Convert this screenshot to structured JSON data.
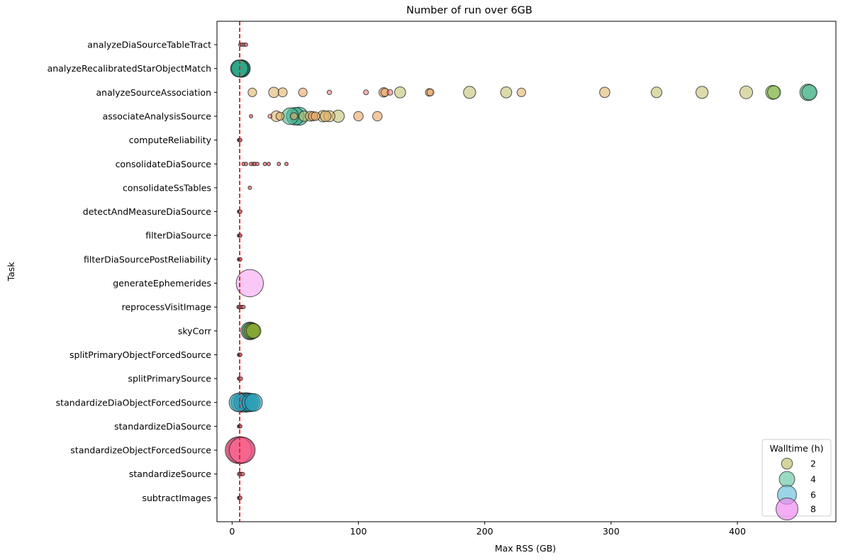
{
  "chart_data": {
    "type": "scatter",
    "title": "Number of run over 6GB",
    "xlabel": "Max RSS (GB)",
    "ylabel": "Task",
    "xlim": [
      -12,
      478
    ],
    "xticks": [
      0,
      100,
      200,
      300,
      400
    ],
    "threshold": 6,
    "threshold_color": "#e8191d",
    "categories": [
      "analyzeDiaSourceTableTract",
      "analyzeRecalibratedStarObjectMatch",
      "analyzeSourceAssociation",
      "associateAnalysisSource",
      "computeReliability",
      "consolidateDiaSource",
      "consolidateSsTables",
      "detectAndMeasureDiaSource",
      "filterDiaSource",
      "filterDiaSourcePostReliability",
      "generateEphemerides",
      "reprocessVisitImage",
      "skyCorr",
      "splitPrimaryObjectForcedSource",
      "splitPrimarySource",
      "standardizeDiaObjectForcedSource",
      "standardizeDiaSource",
      "standardizeObjectForcedSource",
      "standardizeSource",
      "subtractImages"
    ],
    "points": [
      {
        "task": 0,
        "x": 6.5,
        "w": 0.1,
        "c": "#f08080"
      },
      {
        "task": 0,
        "x": 8,
        "w": 0.1,
        "c": "#f08080"
      },
      {
        "task": 0,
        "x": 9.5,
        "w": 0.1,
        "c": "#f08080"
      },
      {
        "task": 0,
        "x": 11,
        "w": 0.1,
        "c": "#f08080"
      },
      {
        "task": 1,
        "x": 5.5,
        "w": 3.5,
        "c": "#2aa889"
      },
      {
        "task": 1,
        "x": 6,
        "w": 3.5,
        "c": "#2aa889"
      },
      {
        "task": 1,
        "x": 6.5,
        "w": 3.6,
        "c": "#2aa889"
      },
      {
        "task": 1,
        "x": 7,
        "w": 3.6,
        "c": "#2aa889"
      },
      {
        "task": 1,
        "x": 7.5,
        "w": 3.7,
        "c": "#2aa889"
      },
      {
        "task": 2,
        "x": 16,
        "w": 0.9,
        "c": "#dfb56a"
      },
      {
        "task": 2,
        "x": 33,
        "w": 1.3,
        "c": "#dfb56a"
      },
      {
        "task": 2,
        "x": 40,
        "w": 1.0,
        "c": "#dfb56a"
      },
      {
        "task": 2,
        "x": 56,
        "w": 0.9,
        "c": "#e8a565"
      },
      {
        "task": 2,
        "x": 77,
        "w": 0.25,
        "c": "#f08080"
      },
      {
        "task": 2,
        "x": 106,
        "w": 0.3,
        "c": "#f08080"
      },
      {
        "task": 2,
        "x": 120,
        "w": 1.1,
        "c": "#e8a565"
      },
      {
        "task": 2,
        "x": 121,
        "w": 0.8,
        "c": "#e8a565"
      },
      {
        "task": 2,
        "x": 125,
        "w": 0.4,
        "c": "#f08080"
      },
      {
        "task": 2,
        "x": 133,
        "w": 1.5,
        "c": "#c3c272"
      },
      {
        "task": 2,
        "x": 156,
        "w": 0.7,
        "c": "#e8a565"
      },
      {
        "task": 2,
        "x": 157,
        "w": 0.6,
        "c": "#e8a565"
      },
      {
        "task": 2,
        "x": 188,
        "w": 1.8,
        "c": "#c3c272"
      },
      {
        "task": 2,
        "x": 217,
        "w": 1.5,
        "c": "#c3c272"
      },
      {
        "task": 2,
        "x": 229,
        "w": 0.9,
        "c": "#dfb56a"
      },
      {
        "task": 2,
        "x": 295,
        "w": 1.3,
        "c": "#dfb56a"
      },
      {
        "task": 2,
        "x": 336,
        "w": 1.4,
        "c": "#c3c272"
      },
      {
        "task": 2,
        "x": 372,
        "w": 1.8,
        "c": "#c3c272"
      },
      {
        "task": 2,
        "x": 407,
        "w": 2.0,
        "c": "#c3c272"
      },
      {
        "task": 2,
        "x": 428,
        "w": 2.4,
        "c": "#8bbd55"
      },
      {
        "task": 2,
        "x": 429,
        "w": 2.1,
        "c": "#8bbd55"
      },
      {
        "task": 2,
        "x": 456,
        "w": 3.3,
        "c": "#4fb68c"
      },
      {
        "task": 2,
        "x": 457,
        "w": 2.8,
        "c": "#4fb68c"
      },
      {
        "task": 3,
        "x": 15,
        "w": 0.1,
        "c": "#f08080"
      },
      {
        "task": 3,
        "x": 30,
        "w": 0.2,
        "c": "#f08080"
      },
      {
        "task": 3,
        "x": 35,
        "w": 1.4,
        "c": "#dfb56a"
      },
      {
        "task": 3,
        "x": 38,
        "w": 0.8,
        "c": "#dfb56a"
      },
      {
        "task": 3,
        "x": 46,
        "w": 3.4,
        "c": "#4fb68c"
      },
      {
        "task": 3,
        "x": 49,
        "w": 0.6,
        "c": "#e8a565"
      },
      {
        "task": 3,
        "x": 50,
        "w": 3.8,
        "c": "#2aa889"
      },
      {
        "task": 3,
        "x": 53,
        "w": 4.0,
        "c": "#2aa889"
      },
      {
        "task": 3,
        "x": 57,
        "w": 1.3,
        "c": "#c3c272"
      },
      {
        "task": 3,
        "x": 62,
        "w": 1.2,
        "c": "#dfb56a"
      },
      {
        "task": 3,
        "x": 64,
        "w": 1.0,
        "c": "#e8a565"
      },
      {
        "task": 3,
        "x": 66,
        "w": 0.9,
        "c": "#e8a565"
      },
      {
        "task": 3,
        "x": 72,
        "w": 1.6,
        "c": "#c3c272"
      },
      {
        "task": 3,
        "x": 74,
        "w": 1.4,
        "c": "#dfb56a"
      },
      {
        "task": 3,
        "x": 77,
        "w": 1.5,
        "c": "#dfb56a"
      },
      {
        "task": 3,
        "x": 84,
        "w": 1.8,
        "c": "#c3c272"
      },
      {
        "task": 3,
        "x": 100,
        "w": 1.1,
        "c": "#e8a565"
      },
      {
        "task": 3,
        "x": 115,
        "w": 1.1,
        "c": "#e8a565"
      },
      {
        "task": 4,
        "x": 5.5,
        "w": 0.05,
        "c": "#f08080"
      },
      {
        "task": 4,
        "x": 6,
        "w": 0.05,
        "c": "#f08080"
      },
      {
        "task": 4,
        "x": 6.5,
        "w": 0.05,
        "c": "#f08080"
      },
      {
        "task": 5,
        "x": 9,
        "w": 0.1,
        "c": "#f08080"
      },
      {
        "task": 5,
        "x": 11,
        "w": 0.1,
        "c": "#f08080"
      },
      {
        "task": 5,
        "x": 15,
        "w": 0.1,
        "c": "#f08080"
      },
      {
        "task": 5,
        "x": 17,
        "w": 0.1,
        "c": "#f08080"
      },
      {
        "task": 5,
        "x": 18,
        "w": 0.1,
        "c": "#f08080"
      },
      {
        "task": 5,
        "x": 20,
        "w": 0.1,
        "c": "#f08080"
      },
      {
        "task": 5,
        "x": 26,
        "w": 0.1,
        "c": "#f08080"
      },
      {
        "task": 5,
        "x": 29,
        "w": 0.1,
        "c": "#f08080"
      },
      {
        "task": 5,
        "x": 37,
        "w": 0.1,
        "c": "#f08080"
      },
      {
        "task": 5,
        "x": 43,
        "w": 0.1,
        "c": "#f08080"
      },
      {
        "task": 6,
        "x": 14,
        "w": 0.1,
        "c": "#f08080"
      },
      {
        "task": 7,
        "x": 5.5,
        "w": 0.05,
        "c": "#f08080"
      },
      {
        "task": 7,
        "x": 6,
        "w": 0.05,
        "c": "#f08080"
      },
      {
        "task": 7,
        "x": 6.5,
        "w": 0.05,
        "c": "#f08080"
      },
      {
        "task": 8,
        "x": 5.5,
        "w": 0.05,
        "c": "#f08080"
      },
      {
        "task": 8,
        "x": 6,
        "w": 0.05,
        "c": "#f08080"
      },
      {
        "task": 8,
        "x": 6.5,
        "w": 0.05,
        "c": "#f08080"
      },
      {
        "task": 9,
        "x": 5.5,
        "w": 0.05,
        "c": "#f08080"
      },
      {
        "task": 9,
        "x": 6,
        "w": 0.05,
        "c": "#f08080"
      },
      {
        "task": 9,
        "x": 6.5,
        "w": 0.05,
        "c": "#f08080"
      },
      {
        "task": 10,
        "x": 14,
        "w": 9.0,
        "c": "#f7a3f2"
      },
      {
        "task": 11,
        "x": 5,
        "w": 0.05,
        "c": "#f08080"
      },
      {
        "task": 11,
        "x": 6,
        "w": 0.05,
        "c": "#f08080"
      },
      {
        "task": 11,
        "x": 7,
        "w": 0.05,
        "c": "#f08080"
      },
      {
        "task": 11,
        "x": 8,
        "w": 0.05,
        "c": "#f08080"
      },
      {
        "task": 11,
        "x": 9,
        "w": 0.05,
        "c": "#f08080"
      },
      {
        "task": 12,
        "x": 14,
        "w": 3.8,
        "c": "#2a9a7a"
      },
      {
        "task": 12,
        "x": 15,
        "w": 3.5,
        "c": "#5f9a3a"
      },
      {
        "task": 12,
        "x": 16,
        "w": 3.0,
        "c": "#8aa62c"
      },
      {
        "task": 12,
        "x": 17,
        "w": 2.6,
        "c": "#8aa62c"
      },
      {
        "task": 13,
        "x": 5.5,
        "w": 0.05,
        "c": "#f08080"
      },
      {
        "task": 13,
        "x": 6,
        "w": 0.05,
        "c": "#f08080"
      },
      {
        "task": 13,
        "x": 6.5,
        "w": 0.05,
        "c": "#f08080"
      },
      {
        "task": 14,
        "x": 5.5,
        "w": 0.05,
        "c": "#f08080"
      },
      {
        "task": 14,
        "x": 6,
        "w": 0.05,
        "c": "#f08080"
      },
      {
        "task": 14,
        "x": 7,
        "w": 0.05,
        "c": "#f08080"
      },
      {
        "task": 15,
        "x": 5,
        "w": 4.2,
        "c": "#2aa0b8"
      },
      {
        "task": 15,
        "x": 7,
        "w": 4.6,
        "c": "#2aa0b8"
      },
      {
        "task": 15,
        "x": 9,
        "w": 4.4,
        "c": "#2aa0b8"
      },
      {
        "task": 15,
        "x": 11,
        "w": 4.6,
        "c": "#2aa0b8"
      },
      {
        "task": 15,
        "x": 13,
        "w": 4.3,
        "c": "#2aa0b8"
      },
      {
        "task": 15,
        "x": 15,
        "w": 4.0,
        "c": "#2aa0b8"
      },
      {
        "task": 15,
        "x": 17,
        "w": 3.8,
        "c": "#2aa0b8"
      },
      {
        "task": 16,
        "x": 5.5,
        "w": 0.05,
        "c": "#f08080"
      },
      {
        "task": 16,
        "x": 6,
        "w": 0.05,
        "c": "#f08080"
      },
      {
        "task": 16,
        "x": 6.5,
        "w": 0.05,
        "c": "#f08080"
      },
      {
        "task": 17,
        "x": 5,
        "w": 8.5,
        "c": "#f4628d"
      },
      {
        "task": 17,
        "x": 6,
        "w": 8.8,
        "c": "#f4628d"
      },
      {
        "task": 17,
        "x": 7,
        "w": 8.6,
        "c": "#f4628d"
      },
      {
        "task": 17,
        "x": 8,
        "w": 8.2,
        "c": "#f4628d"
      },
      {
        "task": 18,
        "x": 5.5,
        "w": 0.05,
        "c": "#f08080"
      },
      {
        "task": 18,
        "x": 6.5,
        "w": 0.05,
        "c": "#f08080"
      },
      {
        "task": 18,
        "x": 7.5,
        "w": 0.05,
        "c": "#f08080"
      },
      {
        "task": 18,
        "x": 8.5,
        "w": 0.05,
        "c": "#f08080"
      },
      {
        "task": 19,
        "x": 5.5,
        "w": 0.05,
        "c": "#f08080"
      },
      {
        "task": 19,
        "x": 6,
        "w": 0.05,
        "c": "#f08080"
      },
      {
        "task": 19,
        "x": 6.5,
        "w": 0.05,
        "c": "#f08080"
      }
    ],
    "legend": {
      "title": "Walltime (h)",
      "position": "bottom-right",
      "entries": [
        {
          "label": "2",
          "w": 2,
          "c": "#c3c272"
        },
        {
          "label": "4",
          "w": 4,
          "c": "#6fc9a8"
        },
        {
          "label": "6",
          "w": 6,
          "c": "#6ec3dc"
        },
        {
          "label": "8",
          "w": 8,
          "c": "#ee8cf0"
        }
      ]
    }
  }
}
